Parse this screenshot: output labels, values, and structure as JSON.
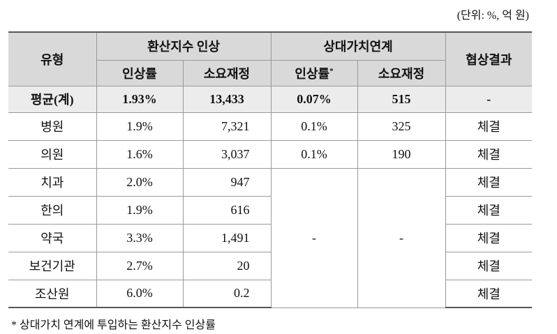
{
  "unit_note": "(단위: %, 억 원)",
  "table": {
    "header": {
      "type": "유형",
      "group1": "환산지수 인상",
      "group2": "상대가치연계",
      "result": "협상결과",
      "sub": [
        "인상률",
        "소요재정",
        "인상률",
        "소요재정"
      ],
      "sub_mark": "*"
    },
    "rows": [
      [
        "평균(계)",
        "1.93%",
        "13,433",
        "0.07%",
        "515",
        "-"
      ],
      [
        "병원",
        "1.9%",
        "7,321",
        "0.1%",
        "325",
        "체결"
      ],
      [
        "의원",
        "1.6%",
        "3,037",
        "0.1%",
        "190",
        "체결"
      ],
      [
        "치과",
        "2.0%",
        "947",
        "체결"
      ],
      [
        "한의",
        "1.9%",
        "616",
        "체결"
      ],
      [
        "약국",
        "3.3%",
        "1,491",
        "체결"
      ],
      [
        "보건기관",
        "2.7%",
        "20",
        "체결"
      ],
      [
        "조산원",
        "6.0%",
        "0.2",
        "체결"
      ]
    ],
    "merged_cells": [
      "-",
      "-"
    ]
  },
  "footnote": "* 상대가치 연계에 투입하는 환산지수 인상률"
}
